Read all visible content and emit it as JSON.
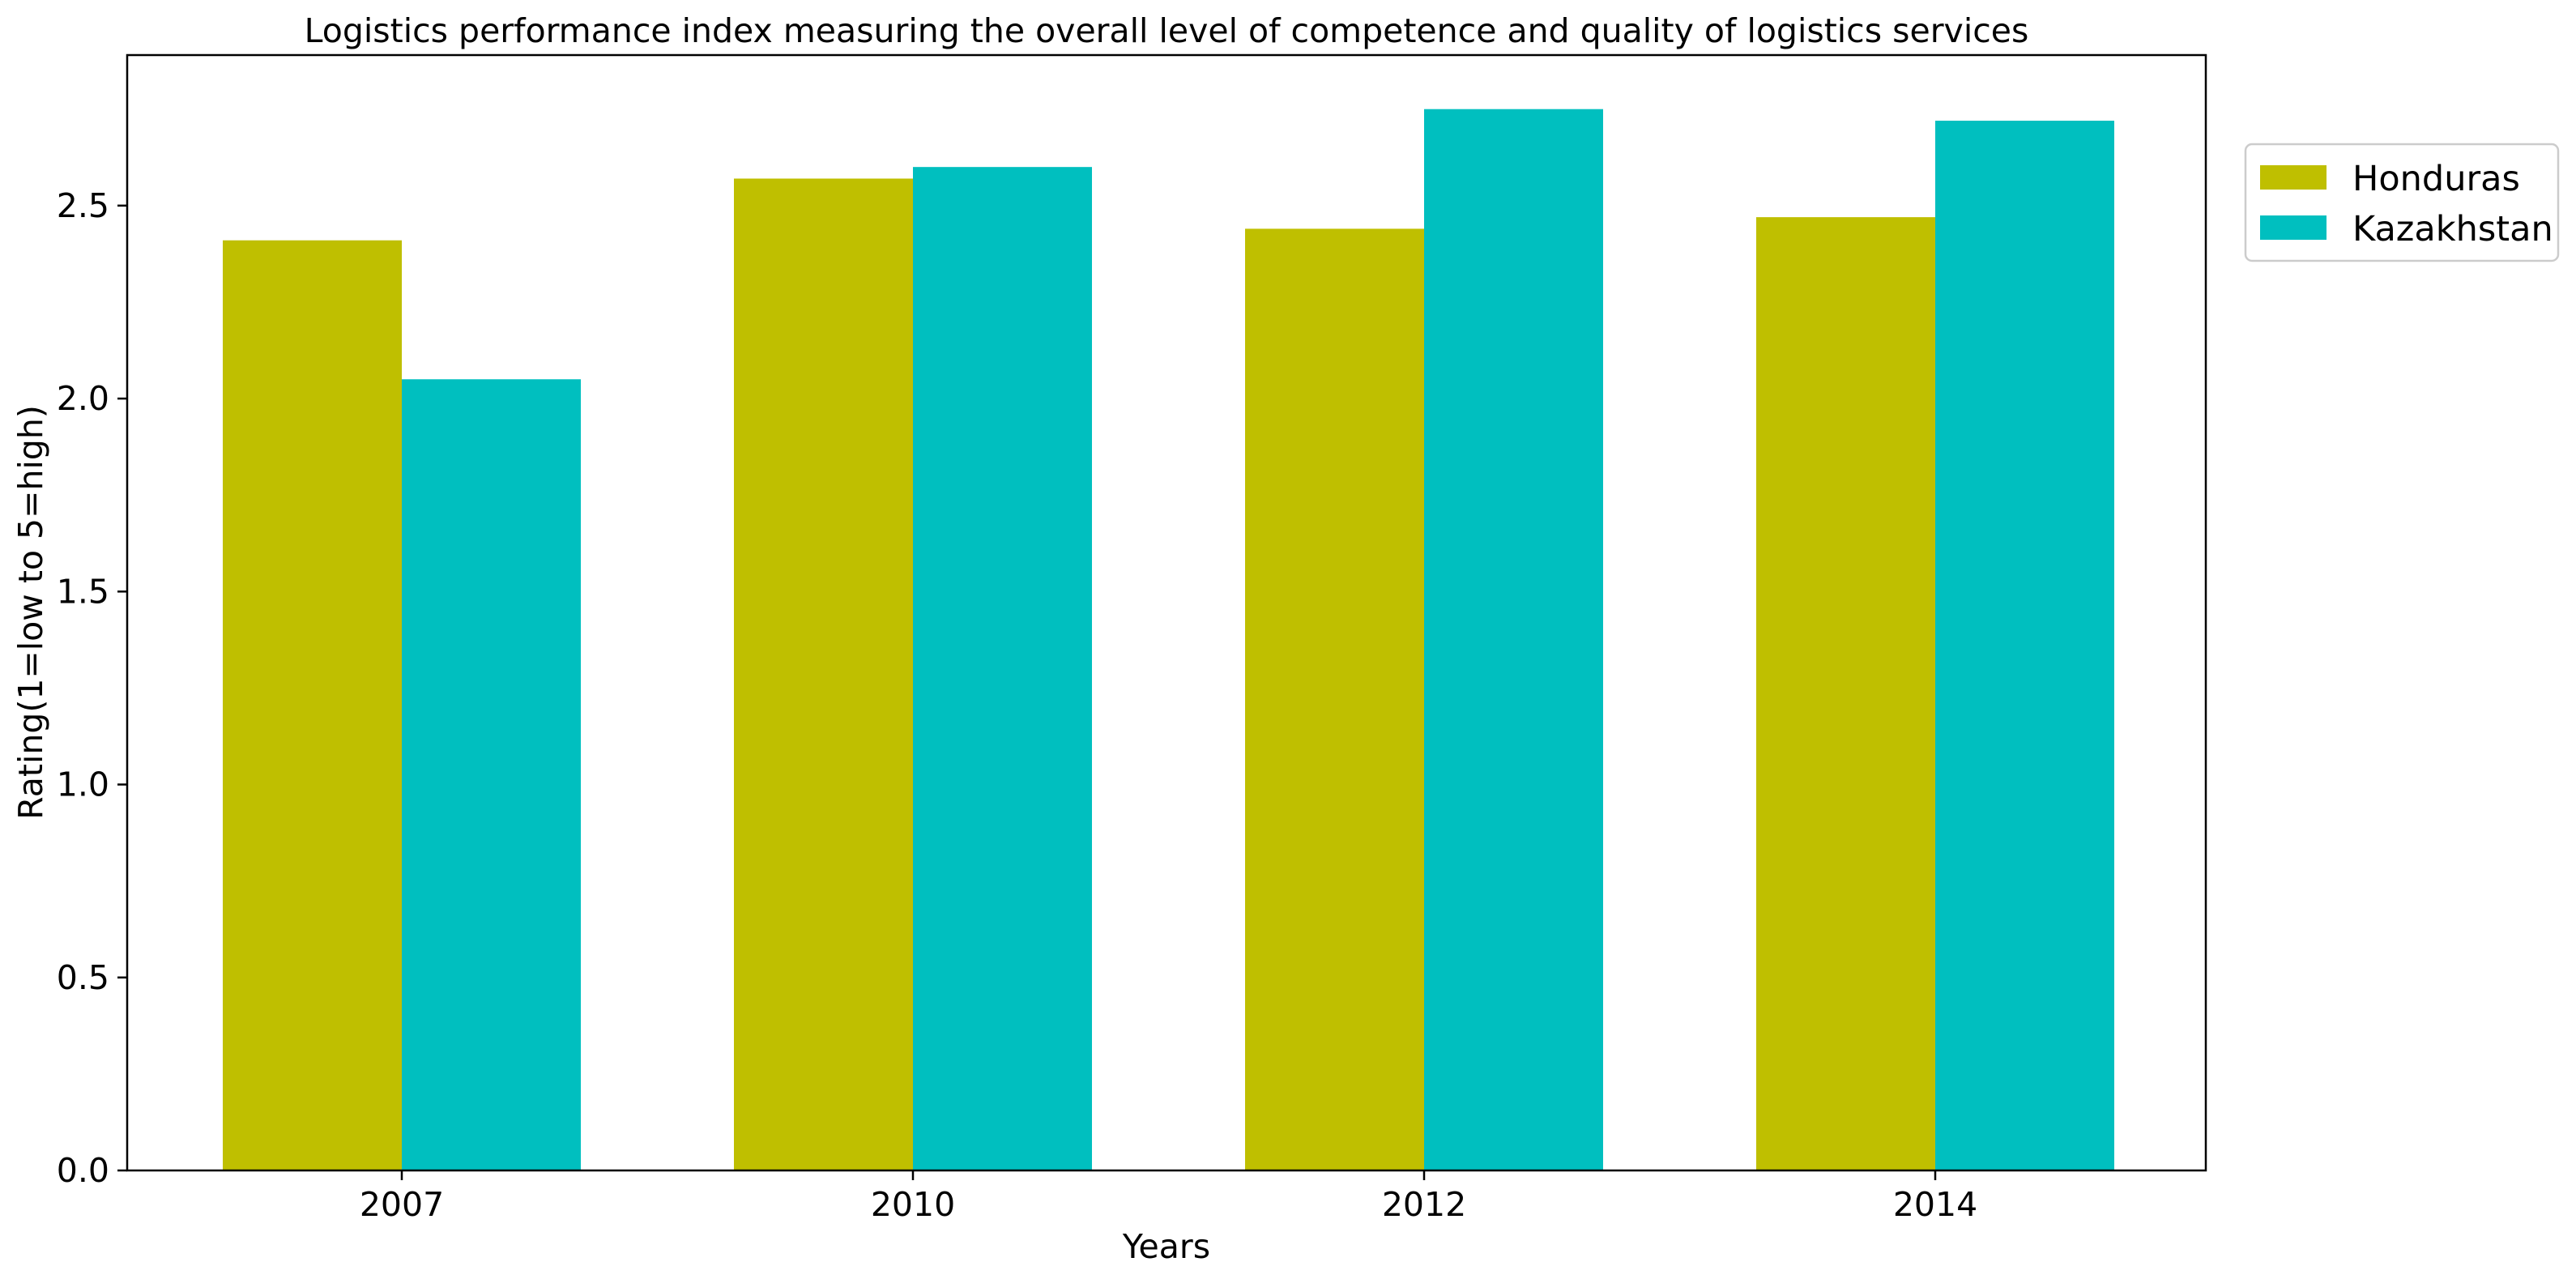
{
  "chart_data": {
    "type": "bar",
    "title": "Logistics performance index measuring the overall level of competence and quality of logistics services",
    "xlabel": "Years",
    "ylabel": "Rating(1=low to 5=high)",
    "categories": [
      "2007",
      "2010",
      "2012",
      "2014"
    ],
    "series": [
      {
        "name": "Honduras",
        "color": "#bfbf00",
        "values": [
          2.41,
          2.57,
          2.44,
          2.47
        ]
      },
      {
        "name": "Kazakhstan",
        "color": "#00bfbf",
        "values": [
          2.05,
          2.6,
          2.75,
          2.72
        ]
      }
    ],
    "ylim": [
      0,
      2.89
    ],
    "yticks": [
      "0.0",
      "0.5",
      "1.0",
      "1.5",
      "2.0",
      "2.5"
    ],
    "grid": false,
    "legend_position": "upper right, outside plot"
  }
}
